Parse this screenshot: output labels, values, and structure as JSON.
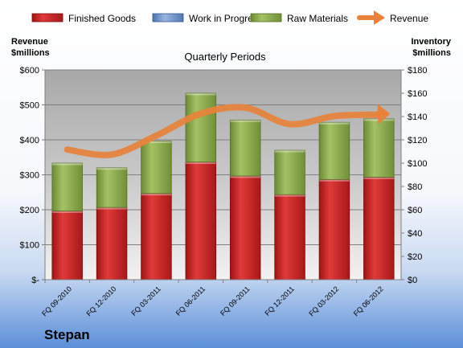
{
  "chart_data": {
    "type": "bar",
    "title": "Quarterly Periods",
    "company": "Stepan",
    "left_axis_label": [
      "Revenue",
      "$millions"
    ],
    "right_axis_label": [
      "Inventory",
      "$millions"
    ],
    "categories": [
      "FQ 09-2010",
      "FQ 12-2010",
      "FQ 03-2011",
      "FQ 06-2011",
      "FQ 09-2011",
      "FQ 12-2011",
      "FQ 03-2012",
      "FQ 06-2012"
    ],
    "left_ylim": [
      0,
      600
    ],
    "left_ticks": [
      "$-",
      "$100",
      "$200",
      "$300",
      "$400",
      "$500",
      "$600"
    ],
    "right_ylim": [
      0,
      180
    ],
    "right_ticks": [
      "$0",
      "$20",
      "$40",
      "$60",
      "$80",
      "$100",
      "$120",
      "$140",
      "$160",
      "$180"
    ],
    "legend_position": "top",
    "grid": true,
    "series": [
      {
        "name": "Finished Goods",
        "kind": "bar",
        "axis": "right",
        "color": "#cc2222",
        "values": [
          59,
          62,
          74,
          101,
          89,
          73,
          86,
          88
        ]
      },
      {
        "name": "Work in Progress",
        "kind": "bar",
        "axis": "right",
        "color": "#6c8ebf",
        "values": [
          0,
          0,
          0,
          0,
          0,
          0,
          0,
          0
        ]
      },
      {
        "name": "Raw Materials",
        "kind": "bar",
        "axis": "right",
        "color": "#8fad4f",
        "values": [
          41,
          34,
          45,
          59,
          48,
          38,
          49,
          50
        ]
      },
      {
        "name": "Revenue",
        "kind": "line",
        "axis": "left",
        "color": "#e8823a",
        "values": [
          372,
          358,
          412,
          475,
          492,
          445,
          468,
          472
        ]
      }
    ]
  }
}
